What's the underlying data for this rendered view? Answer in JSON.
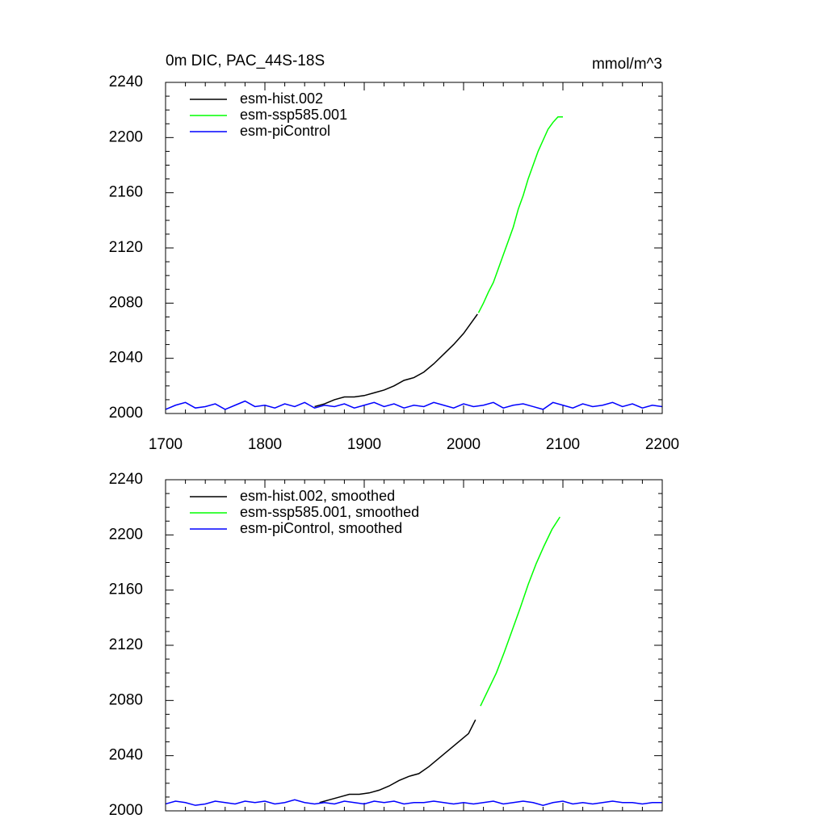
{
  "chart_data": [
    {
      "type": "line",
      "title": "0m DIC, PAC_44S-18S",
      "units": "mmol/m^3",
      "xlim": [
        1700,
        2200
      ],
      "xticks": [
        1700,
        1800,
        1900,
        2000,
        2100,
        2200
      ],
      "xtick_labels": true,
      "xminorticks": [
        1720,
        1740,
        1760,
        1780,
        1820,
        1840,
        1860,
        1880,
        1920,
        1940,
        1960,
        1980,
        2020,
        2040,
        2060,
        2080,
        2120,
        2140,
        2160,
        2180
      ],
      "ylim": [
        2000,
        2240
      ],
      "yticks": [
        2000,
        2040,
        2080,
        2120,
        2160,
        2200,
        2240
      ],
      "yminorticks": [
        2010,
        2020,
        2030,
        2050,
        2060,
        2070,
        2090,
        2100,
        2110,
        2130,
        2140,
        2150,
        2170,
        2180,
        2190,
        2210,
        2220,
        2230
      ],
      "series": [
        {
          "name": "esm-hist.002",
          "color": "#000000",
          "x": [
            1850,
            1860,
            1870,
            1880,
            1890,
            1900,
            1910,
            1920,
            1930,
            1940,
            1950,
            1960,
            1970,
            1980,
            1990,
            2000,
            2010,
            2014
          ],
          "values": [
            2005,
            2007,
            2010,
            2012,
            2012,
            2013,
            2015,
            2017,
            2020,
            2024,
            2026,
            2030,
            2036,
            2043,
            2050,
            2058,
            2068,
            2072
          ]
        },
        {
          "name": "esm-ssp585.001",
          "color": "#00ff00",
          "x": [
            2015,
            2020,
            2025,
            2030,
            2035,
            2040,
            2045,
            2050,
            2055,
            2060,
            2065,
            2070,
            2075,
            2080,
            2085,
            2090,
            2095,
            2100
          ],
          "values": [
            2073,
            2080,
            2088,
            2095,
            2105,
            2115,
            2125,
            2135,
            2148,
            2158,
            2170,
            2180,
            2190,
            2198,
            2206,
            2211,
            2215,
            2215
          ]
        },
        {
          "name": "esm-piControl",
          "color": "#0000ff",
          "x": [
            1700,
            1710,
            1720,
            1730,
            1740,
            1750,
            1760,
            1770,
            1780,
            1790,
            1800,
            1810,
            1820,
            1830,
            1840,
            1850,
            1860,
            1870,
            1880,
            1890,
            1900,
            1910,
            1920,
            1930,
            1940,
            1950,
            1960,
            1970,
            1980,
            1990,
            2000,
            2010,
            2020,
            2030,
            2040,
            2050,
            2060,
            2070,
            2080,
            2090,
            2100,
            2110,
            2120,
            2130,
            2140,
            2150,
            2160,
            2170,
            2180,
            2190,
            2200
          ],
          "values": [
            2003,
            2006,
            2008,
            2004,
            2005,
            2007,
            2003,
            2006,
            2009,
            2005,
            2006,
            2004,
            2007,
            2005,
            2008,
            2004,
            2006,
            2005,
            2007,
            2004,
            2006,
            2008,
            2005,
            2007,
            2004,
            2006,
            2005,
            2008,
            2006,
            2004,
            2007,
            2005,
            2006,
            2008,
            2004,
            2006,
            2007,
            2005,
            2003,
            2008,
            2006,
            2004,
            2007,
            2005,
            2006,
            2008,
            2005,
            2007,
            2004,
            2006,
            2005
          ]
        }
      ]
    },
    {
      "type": "line",
      "xlim": [
        1700,
        2200
      ],
      "xticks": [
        1700,
        1800,
        1900,
        2000,
        2100,
        2200
      ],
      "xtick_labels": false,
      "xminorticks": [
        1720,
        1740,
        1760,
        1780,
        1820,
        1840,
        1860,
        1880,
        1920,
        1940,
        1960,
        1980,
        2020,
        2040,
        2060,
        2080,
        2120,
        2140,
        2160,
        2180
      ],
      "ylim": [
        2000,
        2240
      ],
      "yticks": [
        2000,
        2040,
        2080,
        2120,
        2160,
        2200,
        2240
      ],
      "yminorticks": [
        2010,
        2020,
        2030,
        2050,
        2060,
        2070,
        2090,
        2100,
        2110,
        2130,
        2140,
        2150,
        2170,
        2180,
        2190,
        2210,
        2220,
        2230
      ],
      "series": [
        {
          "name": "esm-hist.002, smoothed",
          "color": "#000000",
          "x": [
            1855,
            1865,
            1875,
            1885,
            1895,
            1905,
            1915,
            1925,
            1935,
            1945,
            1955,
            1965,
            1975,
            1985,
            1995,
            2005,
            2012
          ],
          "values": [
            2006,
            2008,
            2010,
            2012,
            2012,
            2013,
            2015,
            2018,
            2022,
            2025,
            2027,
            2032,
            2038,
            2044,
            2050,
            2056,
            2066
          ]
        },
        {
          "name": "esm-ssp585.001, smoothed",
          "color": "#00ff00",
          "x": [
            2017,
            2025,
            2033,
            2041,
            2049,
            2057,
            2065,
            2073,
            2081,
            2089,
            2097
          ],
          "values": [
            2076,
            2088,
            2100,
            2115,
            2131,
            2147,
            2164,
            2179,
            2192,
            2204,
            2213
          ]
        },
        {
          "name": "esm-piControl, smoothed",
          "color": "#0000ff",
          "x": [
            1700,
            1710,
            1720,
            1730,
            1740,
            1750,
            1760,
            1770,
            1780,
            1790,
            1800,
            1810,
            1820,
            1830,
            1840,
            1850,
            1860,
            1870,
            1880,
            1890,
            1900,
            1910,
            1920,
            1930,
            1940,
            1950,
            1960,
            1970,
            1980,
            1990,
            2000,
            2010,
            2020,
            2030,
            2040,
            2050,
            2060,
            2070,
            2080,
            2090,
            2100,
            2110,
            2120,
            2130,
            2140,
            2150,
            2160,
            2170,
            2180,
            2190,
            2200
          ],
          "values": [
            2005,
            2007,
            2006,
            2004,
            2005,
            2007,
            2006,
            2005,
            2007,
            2006,
            2007,
            2005,
            2006,
            2008,
            2006,
            2005,
            2006,
            2005,
            2007,
            2006,
            2005,
            2007,
            2006,
            2007,
            2005,
            2006,
            2006,
            2007,
            2006,
            2005,
            2006,
            2005,
            2006,
            2007,
            2005,
            2006,
            2007,
            2006,
            2004,
            2006,
            2007,
            2005,
            2006,
            2005,
            2006,
            2007,
            2006,
            2006,
            2005,
            2006,
            2006
          ]
        }
      ]
    }
  ]
}
